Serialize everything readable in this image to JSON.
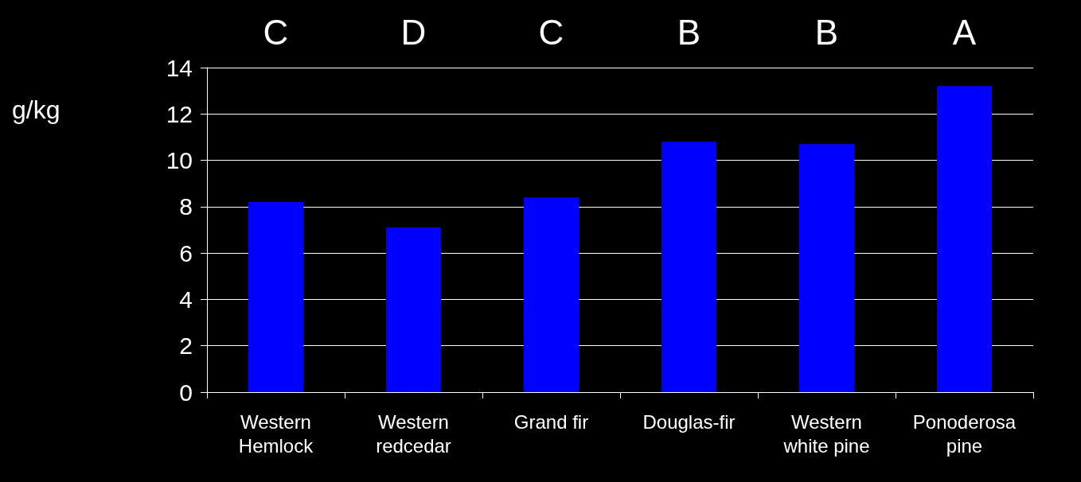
{
  "chart_data": {
    "type": "bar",
    "ylabel": "g/kg",
    "categories": [
      "Western\nHemlock",
      "Western\nredcedar",
      "Grand fir",
      "Douglas-fir",
      "Western\nwhite pine",
      "Ponoderosa\npine"
    ],
    "values": [
      8.2,
      7.1,
      8.4,
      10.8,
      10.7,
      13.2
    ],
    "color": "#0000ff",
    "ylim": [
      0,
      14
    ],
    "yticks": [
      0,
      2,
      4,
      6,
      8,
      10,
      12,
      14
    ],
    "grid": "y",
    "annotations": [
      "C",
      "D",
      "C",
      "B",
      "B",
      "A"
    ]
  }
}
